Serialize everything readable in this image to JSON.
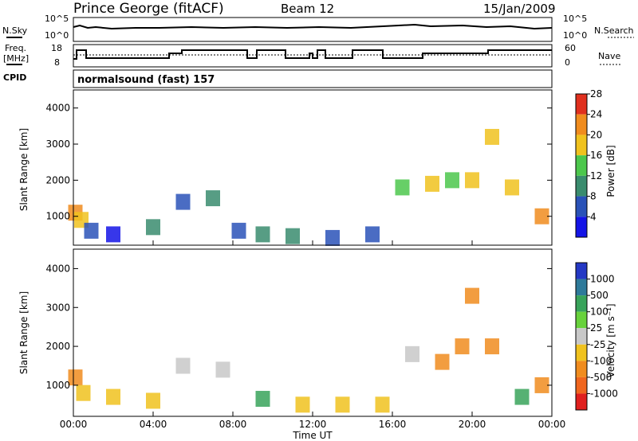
{
  "header": {
    "station": "Prince George (fitACF)",
    "beam": "Beam 12",
    "date": "15/Jan/2009"
  },
  "panels": {
    "noise": {
      "left_label": "N.Sky",
      "right_label": "N.Search",
      "left_ticks": [
        "10^5",
        "10^0"
      ],
      "right_ticks": [
        "10^5",
        "10^0"
      ]
    },
    "freq": {
      "left_label_1": "Freq.",
      "left_label_2": "[MHz]",
      "left_ticks": [
        "18",
        "8"
      ],
      "right_label": "Nave",
      "right_ticks": [
        "60",
        "0"
      ]
    },
    "cpid": {
      "label": "CPID",
      "text": "normalsound (fast) 157"
    }
  },
  "chart_data": [
    {
      "type": "heatmap",
      "title": "",
      "ylabel": "Slant Range [km]",
      "xlabel": "",
      "yticks": [
        "1000",
        "2000",
        "3000",
        "4000"
      ],
      "ylim": [
        200,
        4500
      ],
      "xlim": [
        0,
        24
      ],
      "colorbar_label": "Power [dB]",
      "colorbar_ticks": [
        "4",
        "8",
        "12",
        "16",
        "20",
        "24",
        "28"
      ],
      "colorbar_colors": [
        "#1414e6",
        "#2a52b8",
        "#3a8c6e",
        "#4cc74c",
        "#f0c21e",
        "#f08c1e",
        "#e0301e"
      ],
      "series": [
        {
          "name": "",
          "x": [
            0.1,
            0.4,
            0.9,
            2.0,
            4.0,
            5.5,
            7.0,
            8.3,
            9.5,
            11.0,
            13.0,
            15.0,
            16.5,
            18.0,
            19.0,
            20.0,
            21.0,
            22.0,
            23.5
          ],
          "y": [
            1100,
            900,
            600,
            500,
            700,
            1400,
            1500,
            600,
            500,
            450,
            400,
            500,
            1800,
            1900,
            2000,
            2000,
            3200,
            1800,
            1000
          ],
          "values": [
            24,
            20,
            8,
            6,
            14,
            10,
            12,
            10,
            14,
            12,
            8,
            10,
            16,
            20,
            18,
            22,
            20,
            20,
            26
          ]
        }
      ]
    },
    {
      "type": "heatmap",
      "title": "",
      "ylabel": "Slant Range [km]",
      "xlabel": "Time UT",
      "yticks": [
        "1000",
        "2000",
        "3000",
        "4000"
      ],
      "xticks": [
        "00:00",
        "04:00",
        "08:00",
        "12:00",
        "16:00",
        "20:00",
        "00:00"
      ],
      "ylim": [
        200,
        4500
      ],
      "xlim": [
        0,
        24
      ],
      "colorbar_label": "Velocity [m s⁻¹]",
      "colorbar_ticks": [
        "1000",
        "500",
        "100",
        "25",
        "-25",
        "-100",
        "-500",
        "-1000"
      ],
      "colorbar_colors": [
        "#2438c4",
        "#2e7a9a",
        "#38a35a",
        "#68d23c",
        "#c8c8c8",
        "#f0c21e",
        "#f08c1e",
        "#f0661e",
        "#e0201e"
      ],
      "series": [
        {
          "name": "",
          "x": [
            0.1,
            0.5,
            2.0,
            4.0,
            5.5,
            7.5,
            9.5,
            11.5,
            13.5,
            15.5,
            17.0,
            18.5,
            19.5,
            20.0,
            21.0,
            22.5,
            23.5
          ],
          "y": [
            1200,
            800,
            700,
            600,
            1500,
            1400,
            650,
            500,
            500,
            500,
            1800,
            1600,
            2000,
            3300,
            2000,
            700,
            1000
          ],
          "values": [
            -500,
            -100,
            -100,
            -100,
            0,
            0,
            100,
            -100,
            -100,
            -100,
            0,
            -500,
            -500,
            -500,
            -500,
            100,
            -500
          ]
        }
      ]
    }
  ]
}
